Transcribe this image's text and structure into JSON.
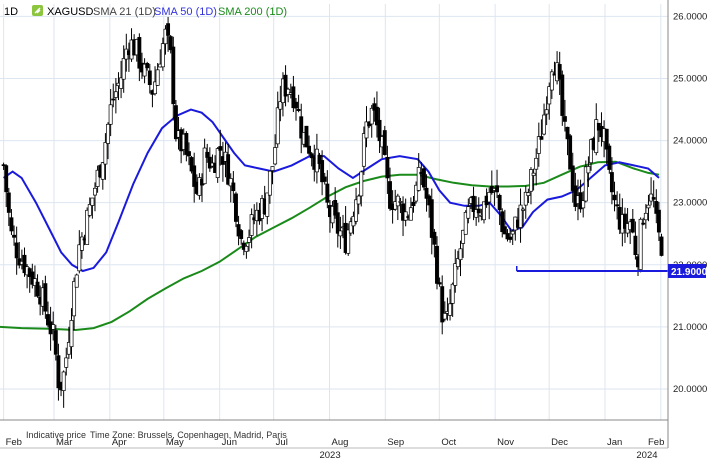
{
  "header": {
    "timeframe": "1D",
    "symbol": "XAGUSD",
    "indicators": [
      {
        "label": "SMA 21 (1D)",
        "color": "#444444"
      },
      {
        "label": "SMA 50 (1D)",
        "color": "#3333dd"
      },
      {
        "label": "SMA 200 (1D)",
        "color": "#1a8a1a"
      }
    ]
  },
  "footer": {
    "indicative": "Indicative price",
    "timezone": "Time Zone: Brussels, Copenhagen, Madrid, Paris"
  },
  "colors": {
    "candle_up_fill": "#ffffff",
    "candle_down_fill": "#000000",
    "candle_outline": "#000000",
    "sma50": "#1a1adc",
    "sma200": "#1a8a1a",
    "support_line": "#1a1adc",
    "price_badge_bg": "#1a1adc",
    "price_badge_text": "#ffffff",
    "grid": "#dde6f0"
  },
  "chart_data": {
    "type": "candlestick",
    "y_ticks": [
      "26.0000",
      "25.0000",
      "24.0000",
      "23.0000",
      "22.0000",
      "21.0000",
      "20.0000"
    ],
    "y_tick_values": [
      26,
      25,
      24,
      23,
      22,
      21,
      20
    ],
    "ylim": [
      19.5,
      26.2
    ],
    "x_ticks": [
      "Feb",
      "Mar",
      "Apr",
      "May",
      "Jun",
      "Jul",
      "Aug",
      "Sep",
      "Oct",
      "Nov",
      "Dec",
      "Jan",
      "Feb"
    ],
    "x_tick_days": [
      0,
      28,
      59,
      89,
      120,
      150,
      181,
      212,
      242,
      273,
      303,
      334,
      365
    ],
    "x_years": [
      {
        "label": "2023",
        "day": 181
      },
      {
        "label": "2024",
        "day": 357
      }
    ],
    "xlim": [
      -2,
      369
    ],
    "grid": true,
    "support_level": {
      "value": 21.9,
      "label": "21.9000",
      "from_day": 285
    },
    "close_points": [
      {
        "d": 0,
        "c": 23.6
      },
      {
        "d": 4,
        "c": 22.5
      },
      {
        "d": 8,
        "c": 22.2
      },
      {
        "d": 14,
        "c": 21.9
      },
      {
        "d": 20,
        "c": 21.6
      },
      {
        "d": 25,
        "c": 21.1
      },
      {
        "d": 28,
        "c": 20.8
      },
      {
        "d": 31,
        "c": 20.0
      },
      {
        "d": 34,
        "c": 20.3
      },
      {
        "d": 38,
        "c": 21.4
      },
      {
        "d": 42,
        "c": 22.3
      },
      {
        "d": 46,
        "c": 22.7
      },
      {
        "d": 52,
        "c": 23.4
      },
      {
        "d": 56,
        "c": 23.9
      },
      {
        "d": 60,
        "c": 24.6
      },
      {
        "d": 65,
        "c": 25.0
      },
      {
        "d": 69,
        "c": 25.6
      },
      {
        "d": 73,
        "c": 25.5
      },
      {
        "d": 78,
        "c": 25.1
      },
      {
        "d": 83,
        "c": 24.8
      },
      {
        "d": 87,
        "c": 25.4
      },
      {
        "d": 90,
        "c": 25.7
      },
      {
        "d": 93,
        "c": 25.3
      },
      {
        "d": 96,
        "c": 24.0
      },
      {
        "d": 100,
        "c": 23.9
      },
      {
        "d": 104,
        "c": 23.5
      },
      {
        "d": 108,
        "c": 23.1
      },
      {
        "d": 112,
        "c": 23.8
      },
      {
        "d": 116,
        "c": 23.6
      },
      {
        "d": 120,
        "c": 23.9
      },
      {
        "d": 124,
        "c": 23.6
      },
      {
        "d": 128,
        "c": 23.1
      },
      {
        "d": 132,
        "c": 22.4
      },
      {
        "d": 136,
        "c": 22.5
      },
      {
        "d": 140,
        "c": 22.8
      },
      {
        "d": 145,
        "c": 23.0
      },
      {
        "d": 150,
        "c": 23.7
      },
      {
        "d": 154,
        "c": 24.8
      },
      {
        "d": 158,
        "c": 24.9
      },
      {
        "d": 162,
        "c": 24.7
      },
      {
        "d": 166,
        "c": 24.1
      },
      {
        "d": 170,
        "c": 23.9
      },
      {
        "d": 175,
        "c": 23.6
      },
      {
        "d": 180,
        "c": 22.9
      },
      {
        "d": 185,
        "c": 22.6
      },
      {
        "d": 190,
        "c": 22.4
      },
      {
        "d": 194,
        "c": 22.9
      },
      {
        "d": 198,
        "c": 23.4
      },
      {
        "d": 201,
        "c": 24.2
      },
      {
        "d": 205,
        "c": 24.5
      },
      {
        "d": 210,
        "c": 23.9
      },
      {
        "d": 214,
        "c": 23.1
      },
      {
        "d": 219,
        "c": 23.0
      },
      {
        "d": 224,
        "c": 22.8
      },
      {
        "d": 228,
        "c": 23.1
      },
      {
        "d": 232,
        "c": 23.5
      },
      {
        "d": 236,
        "c": 22.9
      },
      {
        "d": 240,
        "c": 22.1
      },
      {
        "d": 243,
        "c": 21.3
      },
      {
        "d": 246,
        "c": 21.0
      },
      {
        "d": 250,
        "c": 21.7
      },
      {
        "d": 254,
        "c": 22.3
      },
      {
        "d": 258,
        "c": 22.8
      },
      {
        "d": 262,
        "c": 23.0
      },
      {
        "d": 266,
        "c": 22.9
      },
      {
        "d": 270,
        "c": 23.2
      },
      {
        "d": 274,
        "c": 23.1
      },
      {
        "d": 278,
        "c": 22.5
      },
      {
        "d": 282,
        "c": 22.4
      },
      {
        "d": 286,
        "c": 22.8
      },
      {
        "d": 290,
        "c": 23.0
      },
      {
        "d": 294,
        "c": 23.5
      },
      {
        "d": 298,
        "c": 24.0
      },
      {
        "d": 302,
        "c": 24.8
      },
      {
        "d": 305,
        "c": 25.4
      },
      {
        "d": 308,
        "c": 25.0
      },
      {
        "d": 311,
        "c": 24.2
      },
      {
        "d": 315,
        "c": 23.6
      },
      {
        "d": 318,
        "c": 22.9
      },
      {
        "d": 322,
        "c": 23.2
      },
      {
        "d": 326,
        "c": 23.8
      },
      {
        "d": 330,
        "c": 24.3
      },
      {
        "d": 333,
        "c": 24.1
      },
      {
        "d": 336,
        "c": 23.4
      },
      {
        "d": 340,
        "c": 22.9
      },
      {
        "d": 344,
        "c": 22.6
      },
      {
        "d": 348,
        "c": 22.7
      },
      {
        "d": 352,
        "c": 22.1
      },
      {
        "d": 355,
        "c": 22.8
      },
      {
        "d": 358,
        "c": 23.1
      },
      {
        "d": 361,
        "c": 23.0
      },
      {
        "d": 363,
        "c": 22.5
      },
      {
        "d": 366,
        "c": 22.3
      }
    ],
    "sma50_points": [
      {
        "d": 0,
        "c": 23.4
      },
      {
        "d": 5,
        "c": 23.5
      },
      {
        "d": 10,
        "c": 23.4
      },
      {
        "d": 18,
        "c": 23.0
      },
      {
        "d": 25,
        "c": 22.6
      },
      {
        "d": 32,
        "c": 22.2
      },
      {
        "d": 38,
        "c": 22.0
      },
      {
        "d": 44,
        "c": 21.9
      },
      {
        "d": 50,
        "c": 21.95
      },
      {
        "d": 57,
        "c": 22.2
      },
      {
        "d": 64,
        "c": 22.7
      },
      {
        "d": 72,
        "c": 23.3
      },
      {
        "d": 80,
        "c": 23.8
      },
      {
        "d": 88,
        "c": 24.2
      },
      {
        "d": 96,
        "c": 24.4
      },
      {
        "d": 104,
        "c": 24.5
      },
      {
        "d": 110,
        "c": 24.45
      },
      {
        "d": 116,
        "c": 24.3
      },
      {
        "d": 122,
        "c": 24.05
      },
      {
        "d": 128,
        "c": 23.8
      },
      {
        "d": 134,
        "c": 23.6
      },
      {
        "d": 142,
        "c": 23.55
      },
      {
        "d": 150,
        "c": 23.5
      },
      {
        "d": 160,
        "c": 23.6
      },
      {
        "d": 170,
        "c": 23.75
      },
      {
        "d": 178,
        "c": 23.75
      },
      {
        "d": 186,
        "c": 23.55
      },
      {
        "d": 194,
        "c": 23.4
      },
      {
        "d": 202,
        "c": 23.55
      },
      {
        "d": 210,
        "c": 23.7
      },
      {
        "d": 220,
        "c": 23.75
      },
      {
        "d": 230,
        "c": 23.7
      },
      {
        "d": 236,
        "c": 23.5
      },
      {
        "d": 242,
        "c": 23.2
      },
      {
        "d": 248,
        "c": 23.0
      },
      {
        "d": 256,
        "c": 22.95
      },
      {
        "d": 264,
        "c": 22.95
      },
      {
        "d": 270,
        "c": 23.0
      },
      {
        "d": 276,
        "c": 22.8
      },
      {
        "d": 282,
        "c": 22.55
      },
      {
        "d": 288,
        "c": 22.6
      },
      {
        "d": 294,
        "c": 22.85
      },
      {
        "d": 302,
        "c": 23.05
      },
      {
        "d": 310,
        "c": 23.1
      },
      {
        "d": 318,
        "c": 23.2
      },
      {
        "d": 326,
        "c": 23.4
      },
      {
        "d": 334,
        "c": 23.6
      },
      {
        "d": 342,
        "c": 23.65
      },
      {
        "d": 350,
        "c": 23.6
      },
      {
        "d": 358,
        "c": 23.55
      },
      {
        "d": 364,
        "c": 23.4
      }
    ],
    "sma200_points": [
      {
        "d": -2,
        "c": 21.0
      },
      {
        "d": 10,
        "c": 20.98
      },
      {
        "d": 25,
        "c": 20.97
      },
      {
        "d": 40,
        "c": 20.95
      },
      {
        "d": 50,
        "c": 20.98
      },
      {
        "d": 60,
        "c": 21.08
      },
      {
        "d": 70,
        "c": 21.25
      },
      {
        "d": 80,
        "c": 21.45
      },
      {
        "d": 90,
        "c": 21.62
      },
      {
        "d": 100,
        "c": 21.78
      },
      {
        "d": 110,
        "c": 21.9
      },
      {
        "d": 120,
        "c": 22.05
      },
      {
        "d": 130,
        "c": 22.25
      },
      {
        "d": 140,
        "c": 22.45
      },
      {
        "d": 150,
        "c": 22.6
      },
      {
        "d": 160,
        "c": 22.75
      },
      {
        "d": 170,
        "c": 22.92
      },
      {
        "d": 180,
        "c": 23.1
      },
      {
        "d": 190,
        "c": 23.25
      },
      {
        "d": 200,
        "c": 23.35
      },
      {
        "d": 210,
        "c": 23.42
      },
      {
        "d": 220,
        "c": 23.45
      },
      {
        "d": 230,
        "c": 23.45
      },
      {
        "d": 240,
        "c": 23.38
      },
      {
        "d": 250,
        "c": 23.32
      },
      {
        "d": 260,
        "c": 23.28
      },
      {
        "d": 270,
        "c": 23.26
      },
      {
        "d": 280,
        "c": 23.26
      },
      {
        "d": 290,
        "c": 23.27
      },
      {
        "d": 300,
        "c": 23.32
      },
      {
        "d": 310,
        "c": 23.45
      },
      {
        "d": 320,
        "c": 23.58
      },
      {
        "d": 330,
        "c": 23.65
      },
      {
        "d": 340,
        "c": 23.66
      },
      {
        "d": 350,
        "c": 23.55
      },
      {
        "d": 358,
        "c": 23.48
      },
      {
        "d": 364,
        "c": 23.45
      }
    ]
  }
}
